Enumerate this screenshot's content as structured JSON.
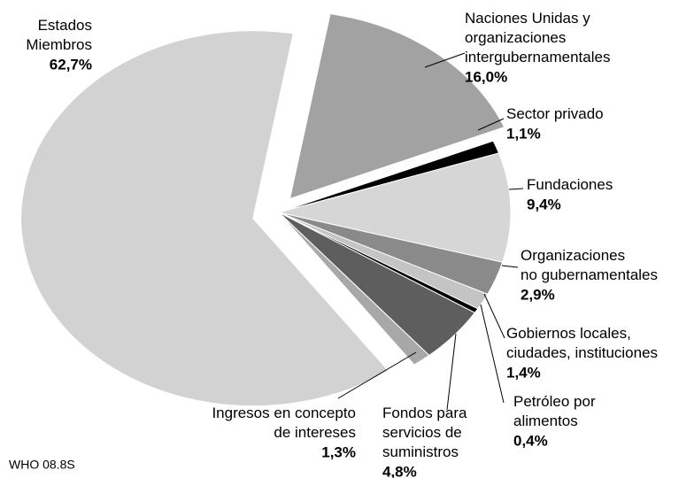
{
  "chart_data": {
    "type": "pie",
    "categories": [
      "Naciones Unidas y\norganizaciones\nintergubernamentales",
      "Sector privado",
      "Fundaciones",
      "Organizaciones\nno gubernamentales",
      "Gobiernos locales,\nciudades, instituciones",
      "Petróleo por\nalimentos",
      "Fondos para\nservicios de\nsuministros",
      "Ingresos en concepto\nde intereses",
      "Estados\nMiembros"
    ],
    "values": [
      16.0,
      1.1,
      9.4,
      2.9,
      1.4,
      0.4,
      4.8,
      1.3,
      62.7
    ],
    "value_labels": [
      "16,0%",
      "1,1%",
      "9,4%",
      "2,9%",
      "1,4%",
      "0,4%",
      "4,8%",
      "1,3%",
      "62,7%"
    ],
    "colors": [
      "#a2a2a2",
      "#000000",
      "#d6d6d6",
      "#8a8a8a",
      "#c4c4c4",
      "#000000",
      "#5e5e5e",
      "#a8a8a8",
      "#d2d2d2"
    ],
    "note": "WHO 08.8S"
  }
}
